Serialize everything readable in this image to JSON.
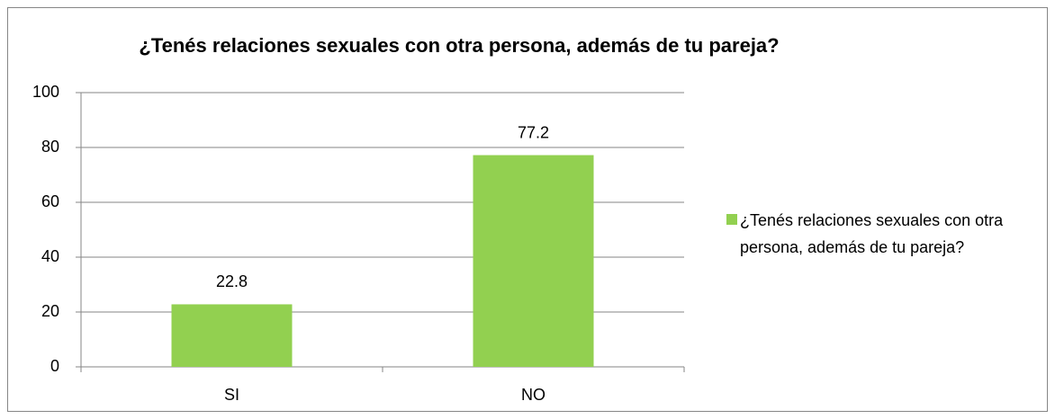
{
  "chart_data": {
    "type": "bar",
    "title": "¿Tenés relaciones sexuales con otra persona, además de tu pareja?",
    "categories": [
      "SI",
      "NO"
    ],
    "series": [
      {
        "name": "¿Tenés relaciones sexuales con otra persona, además de tu pareja?",
        "color": "#92d050",
        "values": [
          22.8,
          77.2
        ]
      }
    ],
    "ylim": [
      0,
      100
    ],
    "yticks": [
      0,
      20,
      40,
      60,
      80,
      100
    ],
    "grid": true,
    "legend": "right",
    "data_labels": true
  }
}
